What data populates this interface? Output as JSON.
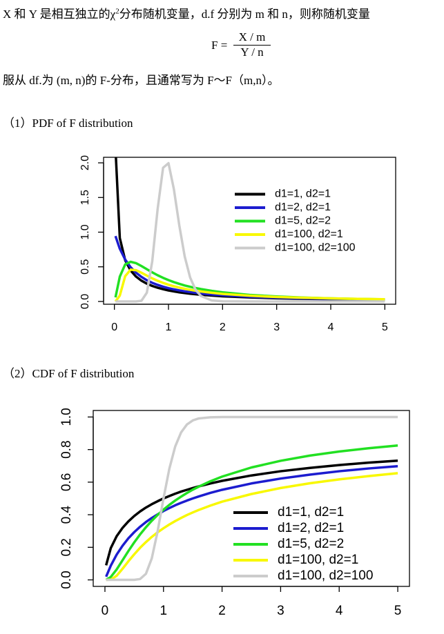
{
  "text": {
    "line1": {
      "before": "X 和 Y 是相互独立的χ",
      "sup": "2",
      "after": "分布随机变量，d.f 分别为 m 和 n，则称随机变量"
    },
    "formula": {
      "lhs": "F =",
      "numerator": "X / m",
      "denominator": "Y / n"
    },
    "line2": "服从 df.为 (m, n)的 F-分布，且通常写为 F～F（m,n）。",
    "heading1": "（1）PDF of F distribution",
    "heading2": "（2）CDF of F distribution"
  },
  "chart_data": [
    {
      "type": "line",
      "legend": "right",
      "x": [
        0.02,
        0.1,
        0.2,
        0.3,
        0.4,
        0.5,
        0.6,
        0.7,
        0.8,
        0.9,
        1.0,
        1.1,
        1.2,
        1.3,
        1.4,
        1.5,
        1.6,
        1.8,
        2,
        2.5,
        3,
        3.5,
        4,
        4.5,
        5
      ],
      "xlim": [
        -0.2,
        5.2
      ],
      "ylim": [
        -0.04,
        2.08
      ],
      "xticks": [
        0,
        1,
        2,
        3,
        4,
        5
      ],
      "yticks": [
        {
          "value": 0,
          "label": "0.0"
        },
        {
          "value": 0.5,
          "label": "0.5"
        },
        {
          "value": 1,
          "label": "1.0"
        },
        {
          "value": 1.5,
          "label": "1.5"
        },
        {
          "value": 2,
          "label": "2.0"
        }
      ],
      "series": [
        {
          "name": "d1=1, d2=1",
          "color": "#000000",
          "values": [
            2.21,
            0.915,
            0.593,
            0.447,
            0.359,
            0.3,
            0.257,
            0.224,
            0.198,
            0.177,
            0.159,
            0.145,
            0.132,
            0.121,
            0.112,
            0.104,
            0.097,
            0.085,
            0.075,
            0.058,
            0.046,
            0.038,
            0.032,
            0.027,
            0.024
          ]
        },
        {
          "name": "d1=2, d2=1",
          "color": "#1c1ccf",
          "values": [
            0.943,
            0.761,
            0.604,
            0.494,
            0.414,
            0.354,
            0.306,
            0.269,
            0.239,
            0.213,
            0.192,
            0.175,
            0.16,
            0.146,
            0.135,
            0.125,
            0.116,
            0.101,
            0.0894,
            0.068,
            0.054,
            0.044,
            0.037,
            0.032,
            0.027
          ]
        },
        {
          "name": "d1=5, d2=2",
          "color": "#22e022",
          "values": [
            0.0589,
            0.358,
            0.535,
            0.572,
            0.553,
            0.511,
            0.465,
            0.42,
            0.378,
            0.341,
            0.308,
            0.279,
            0.254,
            0.231,
            0.212,
            0.194,
            0.179,
            0.153,
            0.132,
            0.095,
            0.0717,
            0.0558,
            0.0447,
            0.0367,
            0.0307
          ]
        },
        {
          "name": "d1=100, d2=1",
          "color": "#f8f800",
          "values": [
            0,
            0.085,
            0.366,
            0.459,
            0.452,
            0.415,
            0.373,
            0.333,
            0.298,
            0.268,
            0.242,
            0.2195,
            0.2,
            0.183,
            0.1685,
            0.1556,
            0.1442,
            0.1251,
            0.1098,
            0.0826,
            0.065,
            0.0528,
            0.044,
            0.0374,
            0.0323
          ]
        },
        {
          "name": "d1=100, d2=100",
          "color": "#cccccc",
          "values": [
            0,
            0,
            0,
            0,
            0.0001,
            0.0098,
            0.127,
            0.581,
            1.338,
            1.929,
            1.995,
            1.619,
            1.097,
            0.649,
            0.346,
            0.17,
            0.0788,
            0.0147,
            0.0025,
            0,
            0,
            0,
            0,
            0,
            0
          ]
        }
      ]
    },
    {
      "type": "line",
      "legend": "bottom-right",
      "x": [
        0.02,
        0.1,
        0.2,
        0.3,
        0.4,
        0.5,
        0.6,
        0.7,
        0.8,
        0.9,
        1.0,
        1.1,
        1.2,
        1.3,
        1.4,
        1.5,
        1.6,
        1.8,
        2,
        2.5,
        3,
        3.5,
        4,
        4.5,
        5
      ],
      "xlim": [
        -0.2,
        5.2
      ],
      "ylim": [
        -0.04,
        1.04
      ],
      "xticks": [
        0,
        1,
        2,
        3,
        4,
        5
      ],
      "yticks": [
        {
          "value": 0,
          "label": "0.0"
        },
        {
          "value": 0.2,
          "label": "0.2"
        },
        {
          "value": 0.4,
          "label": "0.4"
        },
        {
          "value": 0.6,
          "label": "0.6"
        },
        {
          "value": 0.8,
          "label": "0.8"
        },
        {
          "value": 1,
          "label": "1.0"
        }
      ],
      "series": [
        {
          "name": "d1=1, d2=1",
          "color": "#000000",
          "values": [
            0.0894,
            0.195,
            0.268,
            0.319,
            0.359,
            0.392,
            0.42,
            0.444,
            0.4646,
            0.483,
            0.5,
            0.515,
            0.529,
            0.542,
            0.553,
            0.564,
            0.574,
            0.592,
            0.608,
            0.641,
            0.667,
            0.6875,
            0.705,
            0.7196,
            0.732
          ]
        },
        {
          "name": "d1=2, d2=1",
          "color": "#1c1ccf",
          "values": [
            0.0194,
            0.0871,
            0.155,
            0.209,
            0.255,
            0.293,
            0.326,
            0.355,
            0.38,
            0.402,
            0.423,
            0.441,
            0.458,
            0.473,
            0.487,
            0.5,
            0.512,
            0.534,
            0.553,
            0.592,
            0.622,
            0.646,
            0.667,
            0.684,
            0.698
          ]
        },
        {
          "name": "d1=5, d2=2",
          "color": "#22e022",
          "values": [
            0.000495,
            0.0179,
            0.0642,
            0.1203,
            0.1768,
            0.23,
            0.279,
            0.323,
            0.363,
            0.399,
            0.431,
            0.4605,
            0.487,
            0.511,
            0.5335,
            0.554,
            0.572,
            0.6055,
            0.634,
            0.69,
            0.731,
            0.763,
            0.788,
            0.808,
            0.825
          ]
        },
        {
          "name": "d1=100, d2=1",
          "color": "#f8f800",
          "values": [
            0,
            0.0016,
            0.0253,
            0.068,
            0.114,
            0.157,
            0.197,
            0.232,
            0.264,
            0.292,
            0.317,
            0.34,
            0.361,
            0.38,
            0.398,
            0.414,
            0.429,
            0.456,
            0.48,
            0.527,
            0.564,
            0.593,
            0.617,
            0.637,
            0.655
          ]
        },
        {
          "name": "d1=100, d2=100",
          "color": "#cccccc",
          "values": [
            0,
            0,
            0,
            0,
            0,
            0.0003,
            0.0053,
            0.0373,
            0.132,
            0.299,
            0.5,
            0.683,
            0.819,
            0.905,
            0.954,
            0.979,
            0.991,
            0.998,
            0.9997,
            1,
            1,
            1,
            1,
            1,
            1
          ]
        }
      ]
    }
  ]
}
